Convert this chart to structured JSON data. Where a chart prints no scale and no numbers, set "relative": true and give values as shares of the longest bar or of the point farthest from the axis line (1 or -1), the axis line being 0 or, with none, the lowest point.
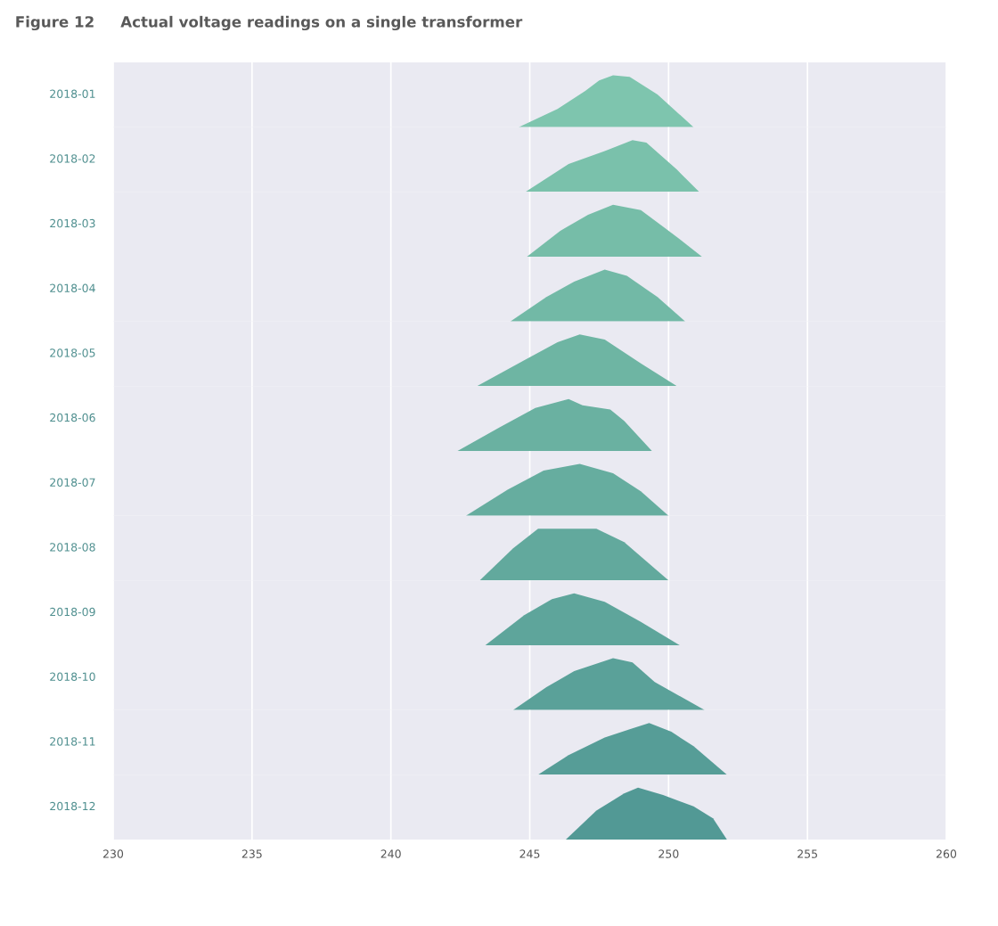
{
  "chart_data": [
    {
      "type": "area",
      "title": "Figure 12     Actual voltage readings on a single transformer",
      "ylabel": "2018-01",
      "relative": true,
      "color": "#7ec5ae",
      "x": [
        244.6,
        246,
        247,
        247.5,
        248,
        248.6,
        249.6,
        250.9
      ],
      "values": [
        0,
        0.35,
        0.7,
        0.9,
        1,
        0.97,
        0.63,
        0
      ],
      "xlim": [
        230,
        260
      ],
      "xticks": [
        230,
        235,
        240,
        245,
        250,
        255,
        260
      ],
      "grid": "x",
      "tick_labels": false
    },
    {
      "type": "area",
      "ylabel": "2018-02",
      "relative": true,
      "color": "#7ac1ab",
      "x": [
        244.85,
        246.4,
        247.7,
        248.7,
        249.2,
        250.3,
        251.1
      ],
      "values": [
        0,
        0.54,
        0.79,
        1,
        0.95,
        0.43,
        0
      ],
      "xlim": [
        230,
        260
      ],
      "xticks": [
        230,
        235,
        240,
        245,
        250,
        255,
        260
      ],
      "grid": "x",
      "tick_labels": false
    },
    {
      "type": "area",
      "ylabel": "2018-03",
      "relative": true,
      "color": "#76bda8",
      "x": [
        244.9,
        246.1,
        247.1,
        248,
        249,
        250.3,
        251.2
      ],
      "values": [
        0,
        0.5,
        0.81,
        1,
        0.9,
        0.38,
        0
      ],
      "xlim": [
        230,
        260
      ],
      "xticks": [
        230,
        235,
        240,
        245,
        250,
        255,
        260
      ],
      "grid": "x",
      "tick_labels": false
    },
    {
      "type": "area",
      "ylabel": "2018-04",
      "relative": true,
      "color": "#72b9a6",
      "x": [
        244.3,
        245.6,
        246.6,
        247.7,
        248.5,
        249.6,
        250.6
      ],
      "values": [
        0,
        0.47,
        0.77,
        1,
        0.88,
        0.47,
        0
      ],
      "xlim": [
        230,
        260
      ],
      "xticks": [
        230,
        235,
        240,
        245,
        250,
        255,
        260
      ],
      "grid": "x",
      "tick_labels": false
    },
    {
      "type": "area",
      "ylabel": "2018-05",
      "relative": true,
      "color": "#6eb5a3",
      "x": [
        243.1,
        244.8,
        246,
        246.8,
        247.7,
        249,
        250.3
      ],
      "values": [
        0,
        0.5,
        0.85,
        1,
        0.9,
        0.44,
        0
      ],
      "xlim": [
        230,
        260
      ],
      "xticks": [
        230,
        235,
        240,
        245,
        250,
        255,
        260
      ],
      "grid": "x",
      "tick_labels": false
    },
    {
      "type": "area",
      "ylabel": "2018-06",
      "relative": true,
      "color": "#6ab1a1",
      "x": [
        242.4,
        243.9,
        245.2,
        246.4,
        246.9,
        247.9,
        248.4,
        249.4
      ],
      "values": [
        0,
        0.45,
        0.83,
        1,
        0.88,
        0.8,
        0.58,
        0
      ],
      "xlim": [
        230,
        260
      ],
      "xticks": [
        230,
        235,
        240,
        245,
        250,
        255,
        260
      ],
      "grid": "x",
      "tick_labels": false
    },
    {
      "type": "area",
      "ylabel": "2018-07",
      "relative": true,
      "color": "#66ad9f",
      "x": [
        242.7,
        244.2,
        245.5,
        246.8,
        248,
        249,
        250
      ],
      "values": [
        0,
        0.5,
        0.87,
        1,
        0.82,
        0.47,
        0
      ],
      "xlim": [
        230,
        260
      ],
      "xticks": [
        230,
        235,
        240,
        245,
        250,
        255,
        260
      ],
      "grid": "x",
      "tick_labels": false
    },
    {
      "type": "area",
      "ylabel": "2018-08",
      "relative": true,
      "color": "#62a99d",
      "x": [
        243.2,
        244.4,
        245.3,
        247.4,
        248.4,
        250
      ],
      "values": [
        0,
        0.62,
        1,
        1,
        0.74,
        0
      ],
      "xlim": [
        230,
        260
      ],
      "xticks": [
        230,
        235,
        240,
        245,
        250,
        255,
        260
      ],
      "grid": "x",
      "tick_labels": false
    },
    {
      "type": "area",
      "ylabel": "2018-09",
      "relative": true,
      "color": "#5ea59b",
      "x": [
        243.4,
        244.8,
        245.8,
        246.6,
        247.7,
        249,
        250.4
      ],
      "values": [
        0,
        0.58,
        0.89,
        1,
        0.84,
        0.45,
        0
      ],
      "xlim": [
        230,
        260
      ],
      "xticks": [
        230,
        235,
        240,
        245,
        250,
        255,
        260
      ],
      "grid": "x",
      "tick_labels": false
    },
    {
      "type": "area",
      "ylabel": "2018-10",
      "relative": true,
      "color": "#5aa199",
      "x": [
        244.4,
        245.6,
        246.6,
        248,
        248.7,
        249.5,
        251.3
      ],
      "values": [
        0,
        0.44,
        0.75,
        1,
        0.92,
        0.54,
        0
      ],
      "xlim": [
        230,
        260
      ],
      "xticks": [
        230,
        235,
        240,
        245,
        250,
        255,
        260
      ],
      "grid": "x",
      "tick_labels": false
    },
    {
      "type": "area",
      "ylabel": "2018-11",
      "relative": true,
      "color": "#569d97",
      "x": [
        245.3,
        246.4,
        247.7,
        248.6,
        249.3,
        250.1,
        250.9,
        252.1
      ],
      "values": [
        0,
        0.38,
        0.72,
        0.88,
        1,
        0.83,
        0.55,
        0
      ],
      "xlim": [
        230,
        260
      ],
      "xticks": [
        230,
        235,
        240,
        245,
        250,
        255,
        260
      ],
      "grid": "x",
      "tick_labels": false
    },
    {
      "type": "area",
      "ylabel": "2018-12",
      "relative": true,
      "color": "#529995",
      "x": [
        246.3,
        247.4,
        248.4,
        248.9,
        249.8,
        250.9,
        251.6,
        252.1
      ],
      "values": [
        0,
        0.56,
        0.89,
        1,
        0.86,
        0.64,
        0.41,
        0
      ],
      "xlim": [
        230,
        260
      ],
      "xticks": [
        230,
        235,
        240,
        245,
        250,
        255,
        260
      ],
      "grid": "x",
      "tick_labels": "x"
    }
  ]
}
